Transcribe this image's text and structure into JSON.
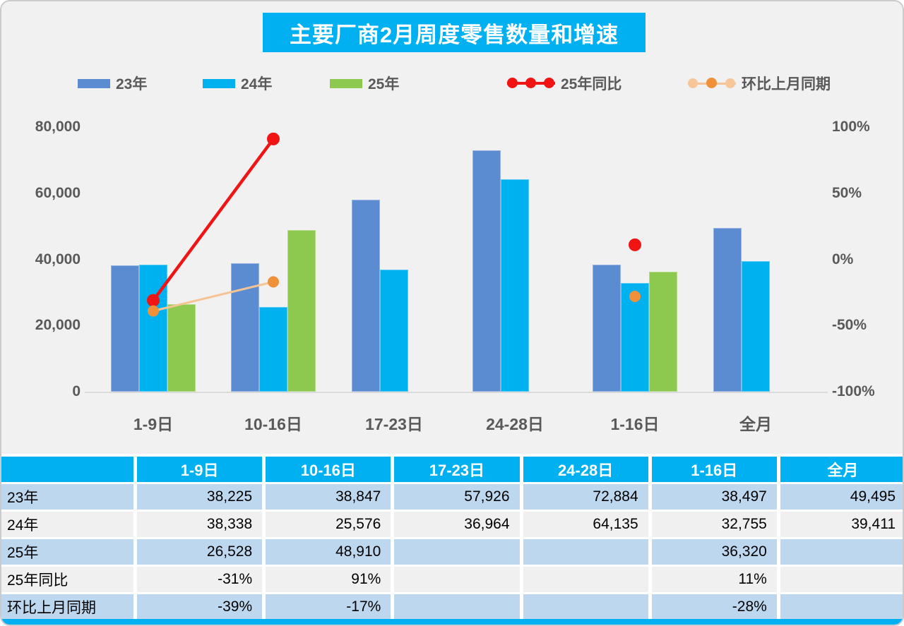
{
  "chart": {
    "title": "主要厂商2月周度零售数量和增速",
    "legend": [
      {
        "label": "23年",
        "type": "bar",
        "color": "#5B8BD0"
      },
      {
        "label": "24年",
        "type": "bar",
        "color": "#00B1F0"
      },
      {
        "label": "25年",
        "type": "bar",
        "color": "#8DC94E"
      },
      {
        "label": "25年同比",
        "type": "line",
        "color": "#F01414"
      },
      {
        "label": "环比上月同期",
        "type": "line",
        "color": "#F6C494"
      }
    ]
  },
  "chart_data": {
    "type": "combo-bar-line",
    "title": "主要厂商2月周度零售数量和增速",
    "categories": [
      "1-9日",
      "10-16日",
      "17-23日",
      "24-28日",
      "1-16日",
      "全月"
    ],
    "bar_series": [
      {
        "name": "23年",
        "color": "#5B8BD0",
        "values": [
          38225,
          38847,
          57926,
          72884,
          38497,
          49495
        ]
      },
      {
        "name": "24年",
        "color": "#00B1F0",
        "values": [
          38338,
          25576,
          36964,
          64135,
          32755,
          39411
        ]
      },
      {
        "name": "25年",
        "color": "#8DC94E",
        "values": [
          26528,
          48910,
          null,
          null,
          36320,
          null
        ]
      }
    ],
    "line_series": [
      {
        "name": "25年同比",
        "color": "#F01414",
        "marker_color": "#F01414",
        "values_pct": [
          -31,
          91,
          null,
          null,
          11,
          null
        ]
      },
      {
        "name": "环比上月同期",
        "color": "#F6C494",
        "marker_color": "#F0913A",
        "values_pct": [
          -39,
          -17,
          null,
          null,
          -28,
          null
        ]
      }
    ],
    "left_axis": {
      "ticks": [
        "80,000",
        "60,000",
        "40,000",
        "20,000",
        "0"
      ],
      "min": 0,
      "max": 80000,
      "grid": false
    },
    "right_axis": {
      "ticks": [
        "100%",
        "50%",
        "0%",
        "-50%",
        "-100%"
      ],
      "min": -100,
      "max": 100
    },
    "legend_position": "top"
  },
  "table": {
    "header": [
      "",
      "1-9日",
      "10-16日",
      "17-23日",
      "24-28日",
      "1-16日",
      "全月"
    ],
    "rows": [
      {
        "label": "23年",
        "values": [
          "38,225",
          "38,847",
          "57,926",
          "72,884",
          "38,497",
          "49,495"
        ]
      },
      {
        "label": "24年",
        "values": [
          "38,338",
          "25,576",
          "36,964",
          "64,135",
          "32,755",
          "39,411"
        ]
      },
      {
        "label": "25年",
        "values": [
          "26,528",
          "48,910",
          "",
          "",
          "36,320",
          ""
        ]
      },
      {
        "label": "25年同比",
        "values": [
          "-31%",
          "91%",
          "",
          "",
          "11%",
          ""
        ]
      },
      {
        "label": "环比上月同期",
        "values": [
          "-39%",
          "-17%",
          "",
          "",
          "-28%",
          ""
        ]
      }
    ]
  },
  "colors": {
    "accent_cyan": "#00B0F0",
    "bar_blue": "#5B8BD0",
    "bar_cyan": "#00B1F0",
    "bar_green": "#8DC94E",
    "line_red": "#F01414",
    "line_orange": "#F6C494",
    "marker_orange": "#F0913A",
    "row_blue": "#BDD7EE",
    "row_gray": "#F0F0F0",
    "chart_bg": "#F1F1F2",
    "axis_text": "#595959"
  }
}
